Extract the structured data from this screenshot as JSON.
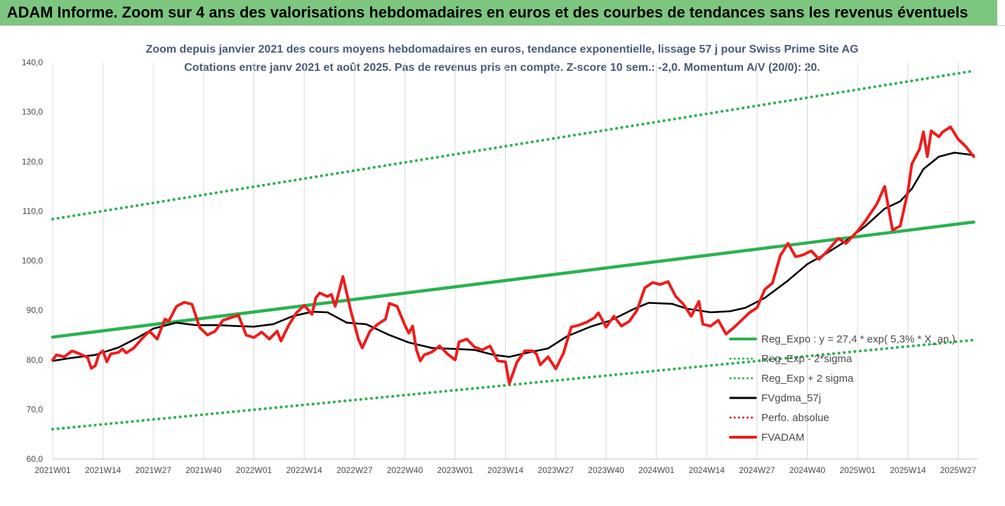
{
  "header": {
    "banner_title": "ADAM Informe. Zoom sur 4 ans des valorisations hebdomadaires en euros et des courbes de tendances sans les revenus éventuels"
  },
  "chart_data": {
    "type": "line",
    "title": "Zoom depuis janvier 2021 des cours moyens hebdomadaires en euros, tendance exponentielle, lissage 57 j pour Swiss Prime Site AG",
    "subtitle": "Cotations entre janv 2021 et août 2025.  Pas de revenus pris en compte. Z-score 10 sem.: -2,0. Momentum A/V (20/0): 20.",
    "xlabel": "",
    "ylabel": "",
    "ylim": [
      60,
      140
    ],
    "y_ticks": [
      "60,0",
      "70,0",
      "80,0",
      "90,0",
      "100,0",
      "110,0",
      "120,0",
      "130,0",
      "140,0"
    ],
    "x_tick_labels": [
      "2021W01",
      "2021W14",
      "2021W27",
      "2021W40",
      "2022W01",
      "2022W14",
      "2022W27",
      "2022W40",
      "2023W01",
      "2023W14",
      "2023W27",
      "2023W40",
      "2024W01",
      "2024W14",
      "2024W27",
      "2024W40",
      "2025W01",
      "2025W14",
      "2025W27"
    ],
    "grid": "vertical",
    "legend_position": "right",
    "series": [
      {
        "name": "Reg_Expo : y = 27,4 * exp( 5,3% * X_an )",
        "color": "#2ab24f",
        "style": "solid",
        "points": [
          [
            "2021W01",
            84.6
          ],
          [
            "2025W31",
            107.8
          ]
        ]
      },
      {
        "name": "Reg_Exp - 2*sigma",
        "color": "#2ab24f",
        "style": "dotted",
        "points": [
          [
            "2021W01",
            66.0
          ],
          [
            "2025W31",
            84.0
          ]
        ]
      },
      {
        "name": "Reg_Exp + 2 sigma",
        "color": "#2ab24f",
        "style": "dotted",
        "points": [
          [
            "2021W01",
            108.4
          ],
          [
            "2025W31",
            138.3
          ]
        ]
      },
      {
        "name": "FVgdma_57j",
        "color": "#000000",
        "style": "solid",
        "points": [
          [
            "2021W01",
            79.8
          ],
          [
            "2021W06",
            80.4
          ],
          [
            "2021W12",
            81.0
          ],
          [
            "2021W18",
            82.5
          ],
          [
            "2021W23",
            84.5
          ],
          [
            "2021W27",
            86.3
          ],
          [
            "2021W33",
            87.5
          ],
          [
            "2021W38",
            87.0
          ],
          [
            "2021W44",
            87.0
          ],
          [
            "2021W49",
            86.8
          ],
          [
            "2022W01",
            86.7
          ],
          [
            "2022W06",
            87.2
          ],
          [
            "2022W11",
            88.8
          ],
          [
            "2022W16",
            89.7
          ],
          [
            "2022W20",
            89.6
          ],
          [
            "2022W25",
            87.5
          ],
          [
            "2022W30",
            87.2
          ],
          [
            "2022W36",
            85.0
          ],
          [
            "2022W41",
            83.5
          ],
          [
            "2022W47",
            82.4
          ],
          [
            "2023W01",
            82.2
          ],
          [
            "2023W06",
            82.0
          ],
          [
            "2023W11",
            81.0
          ],
          [
            "2023W15",
            80.6
          ],
          [
            "2023W20",
            81.5
          ],
          [
            "2023W25",
            82.3
          ],
          [
            "2023W30",
            84.8
          ],
          [
            "2023W36",
            86.7
          ],
          [
            "2023W41",
            87.9
          ],
          [
            "2023W47",
            90.2
          ],
          [
            "2023W51",
            91.5
          ],
          [
            "2024W05",
            91.3
          ],
          [
            "2024W09",
            90.3
          ],
          [
            "2024W15",
            89.6
          ],
          [
            "2024W20",
            89.8
          ],
          [
            "2024W24",
            90.5
          ],
          [
            "2024W29",
            92.5
          ],
          [
            "2024W35",
            96.0
          ],
          [
            "2024W40",
            99.3
          ],
          [
            "2024W45",
            101.5
          ],
          [
            "2024W50",
            104.0
          ],
          [
            "2025W03",
            107.0
          ],
          [
            "2025W08",
            110.5
          ],
          [
            "2025W12",
            112.0
          ],
          [
            "2025W15",
            114.5
          ],
          [
            "2025W18",
            118.5
          ],
          [
            "2025W22",
            121.0
          ],
          [
            "2025W26",
            121.8
          ],
          [
            "2025W31",
            121.3
          ]
        ]
      },
      {
        "name": "Perfo. absolue",
        "color": "#e02020",
        "style": "dotted",
        "points": []
      },
      {
        "name": "FVADAM",
        "color": "#ee1c1c",
        "style": "solid",
        "points": [
          [
            "2021W01",
            80.0
          ],
          [
            "2021W02",
            81.0
          ],
          [
            "2021W04",
            80.6
          ],
          [
            "2021W06",
            81.8
          ],
          [
            "2021W08",
            81.2
          ],
          [
            "2021W10",
            80.5
          ],
          [
            "2021W11",
            78.3
          ],
          [
            "2021W12",
            78.8
          ],
          [
            "2021W13",
            81.2
          ],
          [
            "2021W14",
            81.8
          ],
          [
            "2021W15",
            79.6
          ],
          [
            "2021W16",
            81.2
          ],
          [
            "2021W18",
            81.5
          ],
          [
            "2021W19",
            82.2
          ],
          [
            "2021W20",
            81.4
          ],
          [
            "2021W22",
            82.4
          ],
          [
            "2021W24",
            84.2
          ],
          [
            "2021W26",
            85.8
          ],
          [
            "2021W28",
            84.2
          ],
          [
            "2021W30",
            88.2
          ],
          [
            "2021W31",
            87.8
          ],
          [
            "2021W33",
            90.8
          ],
          [
            "2021W35",
            91.6
          ],
          [
            "2021W37",
            91.2
          ],
          [
            "2021W39",
            86.5
          ],
          [
            "2021W41",
            85.0
          ],
          [
            "2021W43",
            85.8
          ],
          [
            "2021W45",
            88.0
          ],
          [
            "2021W47",
            88.5
          ],
          [
            "2021W49",
            89.0
          ],
          [
            "2021W51",
            85.0
          ],
          [
            "2022W01",
            84.5
          ],
          [
            "2022W03",
            85.6
          ],
          [
            "2022W05",
            84.2
          ],
          [
            "2022W07",
            85.8
          ],
          [
            "2022W08",
            83.8
          ],
          [
            "2022W10",
            87.0
          ],
          [
            "2022W12",
            89.5
          ],
          [
            "2022W14",
            91.0
          ],
          [
            "2022W16",
            89.2
          ],
          [
            "2022W17",
            92.5
          ],
          [
            "2022W18",
            93.5
          ],
          [
            "2022W20",
            92.8
          ],
          [
            "2022W21",
            93.2
          ],
          [
            "2022W22",
            90.8
          ],
          [
            "2022W24",
            96.8
          ],
          [
            "2022W26",
            90.0
          ],
          [
            "2022W28",
            84.2
          ],
          [
            "2022W29",
            82.4
          ],
          [
            "2022W31",
            85.8
          ],
          [
            "2022W33",
            87.2
          ],
          [
            "2022W35",
            88.2
          ],
          [
            "2022W36",
            91.4
          ],
          [
            "2022W38",
            90.8
          ],
          [
            "2022W40",
            87.0
          ],
          [
            "2022W41",
            85.4
          ],
          [
            "2022W42",
            86.8
          ],
          [
            "2022W43",
            82.0
          ],
          [
            "2022W44",
            79.8
          ],
          [
            "2022W45",
            81.0
          ],
          [
            "2022W47",
            81.6
          ],
          [
            "2022W49",
            82.8
          ],
          [
            "2022W51",
            81.2
          ],
          [
            "2023W01",
            80.0
          ],
          [
            "2023W02",
            83.6
          ],
          [
            "2023W04",
            84.2
          ],
          [
            "2023W06",
            82.6
          ],
          [
            "2023W08",
            82.0
          ],
          [
            "2023W10",
            82.8
          ],
          [
            "2023W12",
            79.8
          ],
          [
            "2023W14",
            79.6
          ],
          [
            "2023W15",
            75.2
          ],
          [
            "2023W17",
            79.6
          ],
          [
            "2023W19",
            81.8
          ],
          [
            "2023W21",
            81.8
          ],
          [
            "2023W22",
            81.2
          ],
          [
            "2023W23",
            79.0
          ],
          [
            "2023W25",
            80.6
          ],
          [
            "2023W27",
            78.2
          ],
          [
            "2023W29",
            81.4
          ],
          [
            "2023W31",
            86.6
          ],
          [
            "2023W33",
            87.0
          ],
          [
            "2023W35",
            87.6
          ],
          [
            "2023W37",
            88.5
          ],
          [
            "2023W38",
            89.5
          ],
          [
            "2023W40",
            86.6
          ],
          [
            "2023W42",
            88.8
          ],
          [
            "2023W44",
            86.8
          ],
          [
            "2023W46",
            87.8
          ],
          [
            "2023W48",
            90.0
          ],
          [
            "2023W50",
            94.5
          ],
          [
            "2023W52",
            95.6
          ],
          [
            "2024W02",
            95.2
          ],
          [
            "2024W04",
            95.8
          ],
          [
            "2024W06",
            92.8
          ],
          [
            "2024W08",
            91.2
          ],
          [
            "2024W10",
            88.8
          ],
          [
            "2024W12",
            91.8
          ],
          [
            "2024W13",
            87.2
          ],
          [
            "2024W15",
            86.8
          ],
          [
            "2024W17",
            88.0
          ],
          [
            "2024W19",
            85.2
          ],
          [
            "2024W21",
            86.5
          ],
          [
            "2024W23",
            88.0
          ],
          [
            "2024W25",
            89.5
          ],
          [
            "2024W27",
            90.5
          ],
          [
            "2024W29",
            94.2
          ],
          [
            "2024W31",
            95.5
          ],
          [
            "2024W33",
            101.0
          ],
          [
            "2024W35",
            103.5
          ],
          [
            "2024W37",
            100.8
          ],
          [
            "2024W39",
            101.2
          ],
          [
            "2024W41",
            102.0
          ],
          [
            "2024W43",
            100.3
          ],
          [
            "2024W45",
            101.8
          ],
          [
            "2024W48",
            104.5
          ],
          [
            "2024W50",
            103.5
          ],
          [
            "2025W01",
            106.0
          ],
          [
            "2025W03",
            108.0
          ],
          [
            "2025W06",
            111.5
          ],
          [
            "2025W08",
            115.0
          ],
          [
            "2025W10",
            106.2
          ],
          [
            "2025W12",
            107.0
          ],
          [
            "2025W14",
            114.0
          ],
          [
            "2025W15",
            119.5
          ],
          [
            "2025W17",
            122.5
          ],
          [
            "2025W18",
            126.0
          ],
          [
            "2025W19",
            121.0
          ],
          [
            "2025W20",
            126.2
          ],
          [
            "2025W22",
            125.0
          ],
          [
            "2025W23",
            126.0
          ],
          [
            "2025W25",
            127.0
          ],
          [
            "2025W27",
            124.5
          ],
          [
            "2025W29",
            123.0
          ],
          [
            "2025W31",
            121.0
          ]
        ]
      }
    ]
  }
}
